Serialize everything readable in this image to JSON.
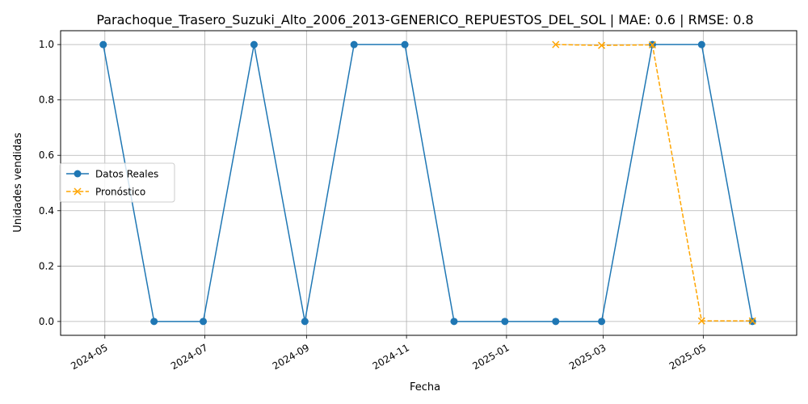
{
  "chart_data": {
    "type": "line",
    "title": "Parachoque_Trasero_Suzuki_Alto_2006_2013-GENERICO_REPUESTOS_DEL_SOL | MAE: 0.6 | RMSE: 0.8",
    "xlabel": "Fecha",
    "ylabel": "Unidades vendidas",
    "xlim": [
      "2024-04-04",
      "2025-06-27"
    ],
    "ylim": [
      -0.05,
      1.05
    ],
    "grid": true,
    "legend_position": "center-left",
    "x_ticks": [
      "2024-05-01",
      "2024-07-01",
      "2024-09-01",
      "2024-11-01",
      "2025-01-01",
      "2025-03-01",
      "2025-05-01"
    ],
    "x_tick_labels": [
      "2024-05",
      "2024-07",
      "2024-09",
      "2024-11",
      "2025-01",
      "2025-03",
      "2025-05"
    ],
    "y_ticks": [
      0.0,
      0.2,
      0.4,
      0.6,
      0.8,
      1.0
    ],
    "y_tick_labels": [
      "0.0",
      "0.2",
      "0.4",
      "0.6",
      "0.8",
      "1.0"
    ],
    "series": [
      {
        "name": "Datos Reales",
        "color": "#1f77b4",
        "line_style": "solid",
        "marker": "circle",
        "x": [
          "2024-04-30",
          "2024-05-31",
          "2024-06-30",
          "2024-07-31",
          "2024-08-31",
          "2024-09-30",
          "2024-10-31",
          "2024-11-30",
          "2024-12-31",
          "2025-01-31",
          "2025-02-28",
          "2025-03-31",
          "2025-04-30",
          "2025-05-31"
        ],
        "values": [
          1,
          0,
          0,
          1,
          0,
          1,
          1,
          0,
          0,
          0,
          0,
          1,
          1,
          0
        ]
      },
      {
        "name": "Pronóstico",
        "color": "#ffa500",
        "line_style": "dashed",
        "marker": "x",
        "x": [
          "2025-01-31",
          "2025-02-28",
          "2025-03-31",
          "2025-04-30",
          "2025-05-31"
        ],
        "values": [
          1.0,
          0.997,
          0.999,
          0.002,
          0.002
        ]
      }
    ]
  }
}
